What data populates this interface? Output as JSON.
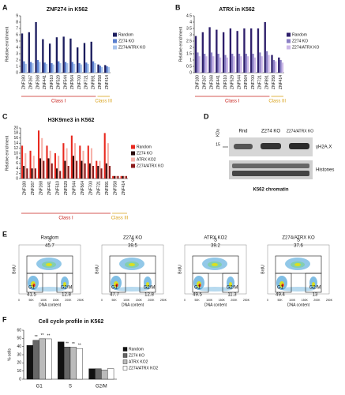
{
  "chart_data": [
    {
      "type": "bar",
      "panel": "A",
      "title": "ZNF274 in K562",
      "ylabel": "Relative enrichment",
      "categories": [
        "ZNF180",
        "ZNF267",
        "ZNF268",
        "ZNF441",
        "ZNF510",
        "ZNF529",
        "ZNF544",
        "ZNF564",
        "ZNF700",
        "ZNF721",
        "ZNF891",
        "ZNF358",
        "ZNF414"
      ],
      "series": [
        {
          "name": "Random",
          "color": "#1c1d5e",
          "values": [
            6.2,
            6.4,
            8.0,
            5.3,
            4.6,
            5.6,
            5.7,
            5.4,
            4.0,
            4.7,
            4.9,
            1.3,
            1.2
          ]
        },
        {
          "name": "Z274 KO",
          "color": "#5a7fcf",
          "values": [
            1.8,
            1.7,
            2.0,
            1.6,
            1.5,
            1.8,
            1.7,
            1.7,
            1.5,
            1.6,
            1.8,
            1.1,
            1.0
          ]
        },
        {
          "name": "Z274/ATRX KO",
          "color": "#a9c4ec",
          "values": [
            1.4,
            1.5,
            1.7,
            1.4,
            1.3,
            1.5,
            1.5,
            1.4,
            1.3,
            1.4,
            1.5,
            0.9,
            0.9
          ]
        }
      ],
      "ylim": [
        0,
        9
      ],
      "yticks": [
        0,
        1,
        2,
        3,
        4,
        5,
        6,
        7,
        8,
        9
      ],
      "groups": [
        {
          "label": "Class I",
          "from": "ZNF180",
          "to": "ZNF891",
          "color": "#c8201b"
        },
        {
          "label": "Class III",
          "from": "ZNF358",
          "to": "ZNF414",
          "color": "#d9a21b"
        }
      ]
    },
    {
      "type": "bar",
      "panel": "B",
      "title": "ATRX in K562",
      "ylabel": "Relative enrichment",
      "categories": [
        "ZNF180",
        "ZNF267",
        "ZNF268",
        "ZNF441",
        "ZNF510",
        "ZNF529",
        "ZNF544",
        "ZNF564",
        "ZNF700",
        "ZNF721",
        "ZNF891",
        "ZNF358",
        "ZNF414"
      ],
      "series": [
        {
          "name": "Random",
          "color": "#2e1f6b",
          "values": [
            2.9,
            3.2,
            3.6,
            3.4,
            3.2,
            3.5,
            3.3,
            3.5,
            3.5,
            3.5,
            4.0,
            1.4,
            1.2
          ]
        },
        {
          "name": "Z274 KO",
          "color": "#8a7fc4",
          "values": [
            1.6,
            1.5,
            1.6,
            1.5,
            1.4,
            1.5,
            1.5,
            1.5,
            1.5,
            1.6,
            1.7,
            1.0,
            1.0
          ]
        },
        {
          "name": "Z274/ATRX KO",
          "color": "#cdb9e8",
          "values": [
            1.3,
            1.3,
            1.3,
            1.2,
            1.2,
            1.3,
            1.3,
            1.3,
            1.2,
            1.3,
            1.4,
            0.9,
            0.8
          ]
        }
      ],
      "ylim": [
        0,
        4.5
      ],
      "yticks": [
        0,
        0.5,
        1,
        1.5,
        2,
        2.5,
        3,
        3.5,
        4,
        4.5
      ],
      "groups": [
        {
          "label": "Class I",
          "from": "ZNF180",
          "to": "ZNF891",
          "color": "#c8201b"
        },
        {
          "label": "Class III",
          "from": "ZNF358",
          "to": "ZNF414",
          "color": "#d9a21b"
        }
      ]
    },
    {
      "type": "bar",
      "panel": "C",
      "title": "H3K9me3 in K562",
      "ylabel": "Relative enrichment",
      "categories": [
        "ZNF180",
        "ZNF267",
        "ZNF268",
        "ZNF441",
        "ZNF510",
        "ZNF529",
        "ZNF544",
        "ZNF564",
        "ZNF700",
        "ZNF721",
        "ZNF891",
        "ZNF358",
        "ZNF414"
      ],
      "series": [
        {
          "name": "Random",
          "color": "#e8281e",
          "values": [
            13,
            11,
            19,
            13,
            10,
            14,
            17,
            13,
            13,
            7,
            18,
            1,
            1
          ]
        },
        {
          "name": "Z274 KO",
          "color": "#2a0b0b",
          "values": [
            5,
            4,
            8,
            8,
            4,
            7,
            9,
            7,
            6,
            5,
            6,
            1,
            1
          ]
        },
        {
          "name": "ATRX KO2",
          "color": "#f6b2aa",
          "values": [
            10,
            9,
            16,
            11,
            9,
            12,
            14,
            11,
            12,
            7,
            14,
            1,
            1
          ]
        },
        {
          "name": "Z274/ATRX KO",
          "color": "#8b1a1a",
          "values": [
            4,
            4,
            7,
            6,
            3,
            5,
            7,
            6,
            5,
            4,
            5,
            1,
            1
          ]
        }
      ],
      "ylim": [
        0,
        20
      ],
      "yticks": [
        0,
        2,
        4,
        6,
        8,
        10,
        12,
        14,
        16,
        18,
        20
      ],
      "groups": [
        {
          "label": "Class I",
          "from": "ZNF180",
          "to": "ZNF891",
          "color": "#c8201b"
        },
        {
          "label": "Class III",
          "from": "ZNF358",
          "to": "ZNF414",
          "color": "#d9a21b"
        }
      ]
    },
    {
      "type": "bar",
      "panel": "F",
      "title": "Cell cycle profile in K562",
      "ylabel": "% cells",
      "categories": [
        "G1",
        "S",
        "G2/M"
      ],
      "series": [
        {
          "name": "Random",
          "color": "#111111",
          "values": [
            41.5,
            45.7,
            12.8
          ]
        },
        {
          "name": "Z274 KO",
          "color": "#666666",
          "values": [
            47.7,
            39.5,
            12.8
          ]
        },
        {
          "name": "ATRX KO2",
          "color": "#bbbbbb",
          "values": [
            49.5,
            39.2,
            11.3
          ]
        },
        {
          "name": "Z274/ATRX KO2",
          "color": "#ffffff",
          "values": [
            49.4,
            37.6,
            13
          ]
        }
      ],
      "ylim": [
        0,
        60
      ],
      "yticks": [
        0,
        10,
        20,
        30,
        40,
        50,
        60
      ],
      "annotations": [
        {
          "text": "**",
          "category": "G1",
          "series": "Z274 KO"
        },
        {
          "text": "**",
          "category": "G1",
          "series": "ATRX KO2"
        },
        {
          "text": "**",
          "category": "G1",
          "series": "Z274/ATRX KO2"
        },
        {
          "text": "**",
          "category": "S",
          "series": "Z274 KO"
        },
        {
          "text": "**",
          "category": "S",
          "series": "ATRX KO2"
        },
        {
          "text": "**",
          "category": "S",
          "series": "Z274/ATRX KO2"
        }
      ]
    }
  ],
  "blot": {
    "panel": "D",
    "unit": "KDa",
    "marker": "15",
    "lanes": [
      "Rnd",
      "Z274 KO",
      "Z274/ATRX KO"
    ],
    "bands": [
      "γH2A.X",
      "Histones"
    ],
    "caption": "K562 chromatin"
  },
  "flow": {
    "panel": "E",
    "ylabel": "BrdU",
    "xlabel": "DNA content",
    "xticks": [
      "0",
      "50K",
      "100K",
      "150K",
      "200K",
      "250K"
    ],
    "plots": [
      {
        "title": "Random",
        "gates": [
          {
            "label": "S",
            "value": 45.7
          },
          {
            "label": "G1",
            "value": 41.5
          },
          {
            "label": "G2/M",
            "value": 12.8
          }
        ]
      },
      {
        "title": "Z274 KO",
        "gates": [
          {
            "label": "S",
            "value": 39.5
          },
          {
            "label": "G1",
            "value": 47.7
          },
          {
            "label": "G2/M",
            "value": 12.8
          }
        ]
      },
      {
        "title": "ATRX KO2",
        "gates": [
          {
            "label": "S",
            "value": 39.2
          },
          {
            "label": "G1",
            "value": 49.5
          },
          {
            "label": "G2/M",
            "value": 11.3
          }
        ]
      },
      {
        "title": "Z274/ATRX KO",
        "gates": [
          {
            "label": "S",
            "value": 37.6
          },
          {
            "label": "G1",
            "value": 49.4
          },
          {
            "label": "G2/M",
            "value": 13
          }
        ]
      }
    ]
  }
}
